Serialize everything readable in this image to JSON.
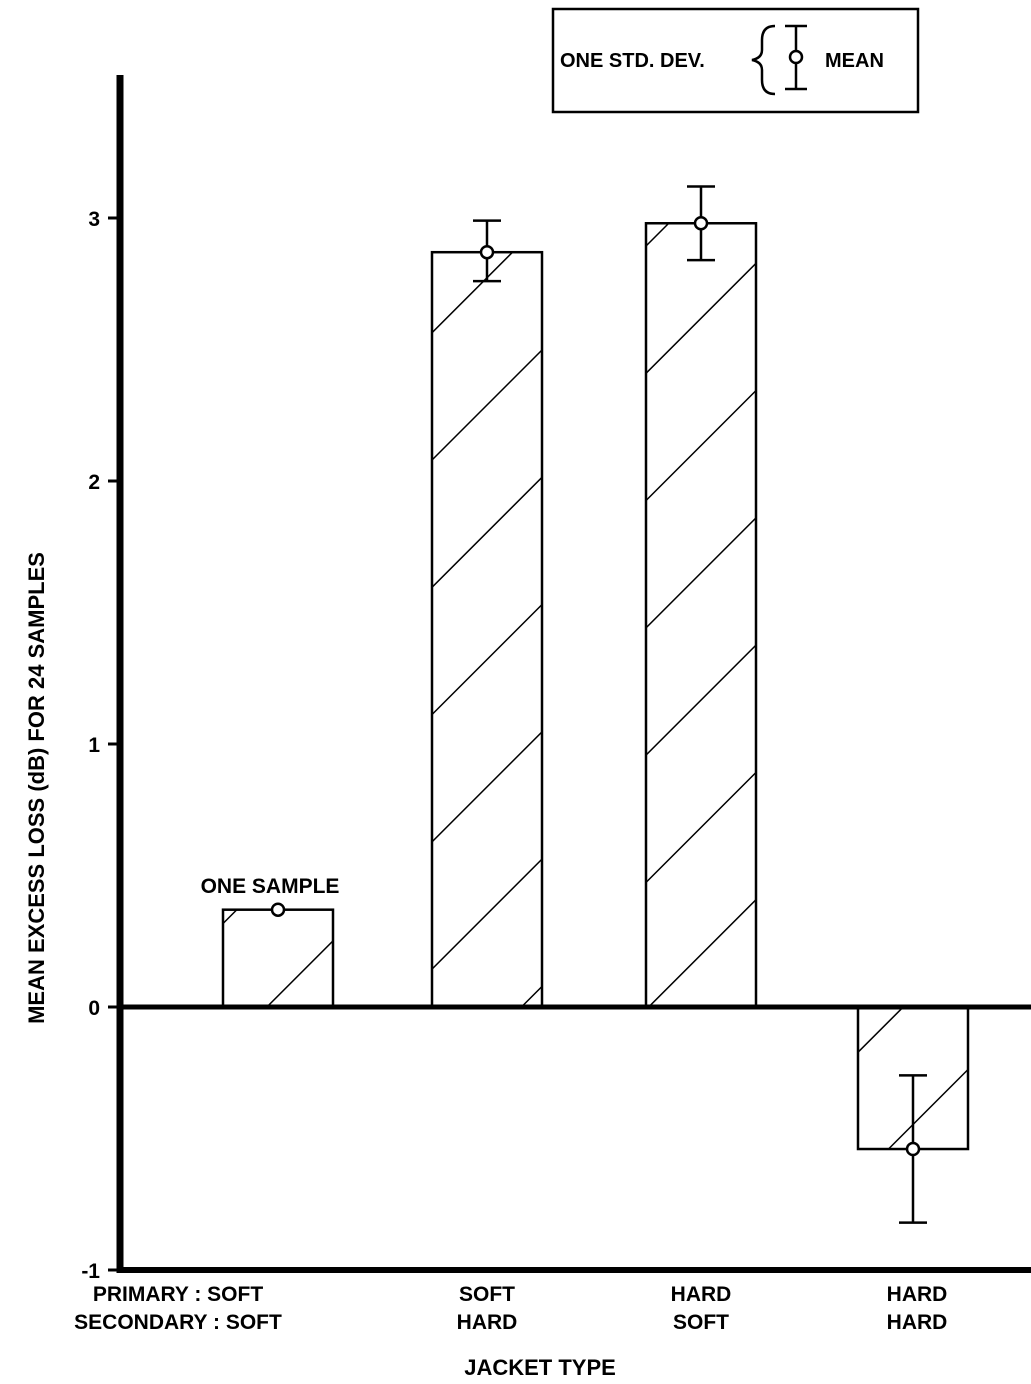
{
  "chart_data": {
    "type": "bar",
    "ylabel": "MEAN EXCESS LOSS (dB) FOR 24 SAMPLES",
    "xlabel": "JACKET TYPE",
    "ylim": [
      -1,
      3.5
    ],
    "yticks": [
      -1,
      0,
      1,
      2,
      3
    ],
    "categories": [
      {
        "primary": "PRIMARY : SOFT",
        "secondary": "SECONDARY : SOFT"
      },
      {
        "primary": "SOFT",
        "secondary": "HARD"
      },
      {
        "primary": "HARD",
        "secondary": "SOFT"
      },
      {
        "primary": "HARD",
        "secondary": "HARD"
      }
    ],
    "values": [
      0.37,
      2.87,
      2.98,
      -0.54
    ],
    "mean": [
      0.37,
      2.87,
      2.98,
      -0.54
    ],
    "std_low": [
      null,
      2.76,
      2.84,
      -0.82
    ],
    "std_high": [
      null,
      2.99,
      3.12,
      -0.26
    ],
    "annotations": [
      {
        "category_index": 0,
        "text": "ONE SAMPLE"
      }
    ],
    "legend": {
      "std_label": "ONE STD. DEV.",
      "mean_label": "MEAN",
      "placement": "top-right"
    },
    "grid": false,
    "bar_fill": "hatched"
  }
}
